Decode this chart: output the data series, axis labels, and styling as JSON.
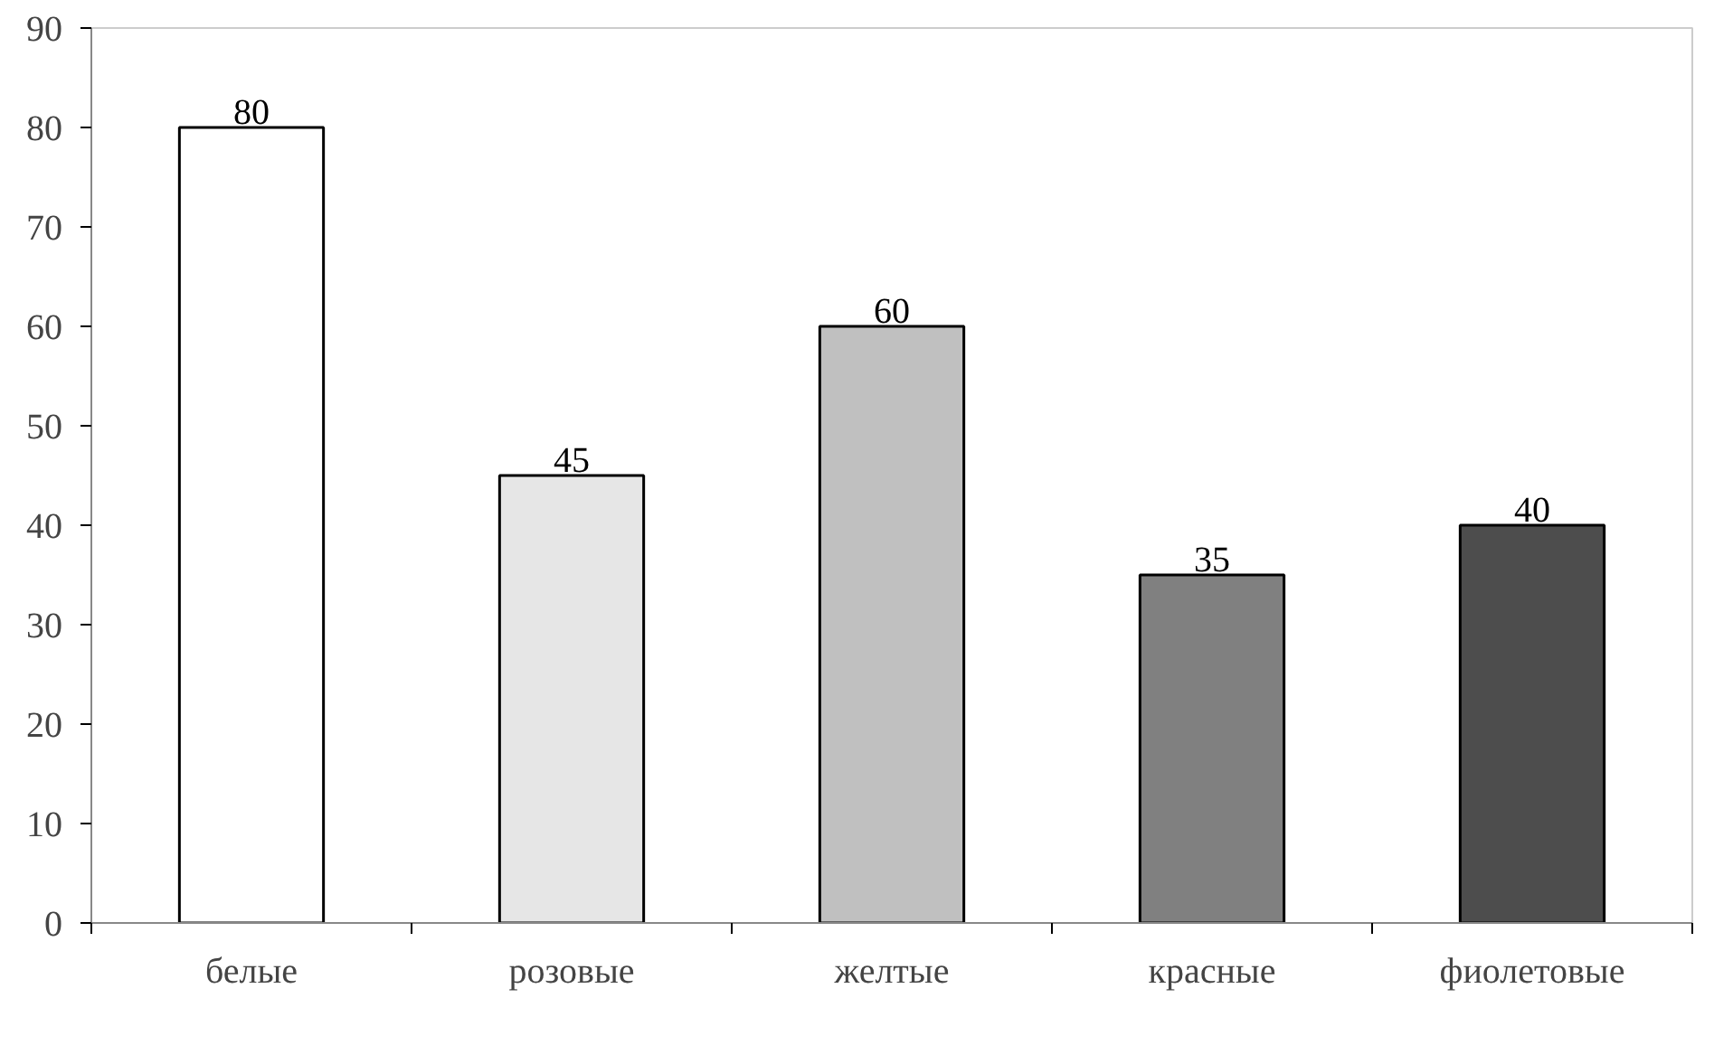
{
  "chart_data": {
    "type": "bar",
    "categories": [
      "белые",
      "розовые",
      "желтые",
      "красные",
      "фиолетовые"
    ],
    "values": [
      80,
      45,
      60,
      35,
      40
    ],
    "colors": [
      "#ffffff",
      "#e6e6e6",
      "#c0c0c0",
      "#808080",
      "#4d4d4d"
    ],
    "ylim": [
      0,
      90
    ],
    "yticks": [
      0,
      10,
      20,
      30,
      40,
      50,
      60,
      70,
      80,
      90
    ],
    "grid": false,
    "data_labels": true
  }
}
